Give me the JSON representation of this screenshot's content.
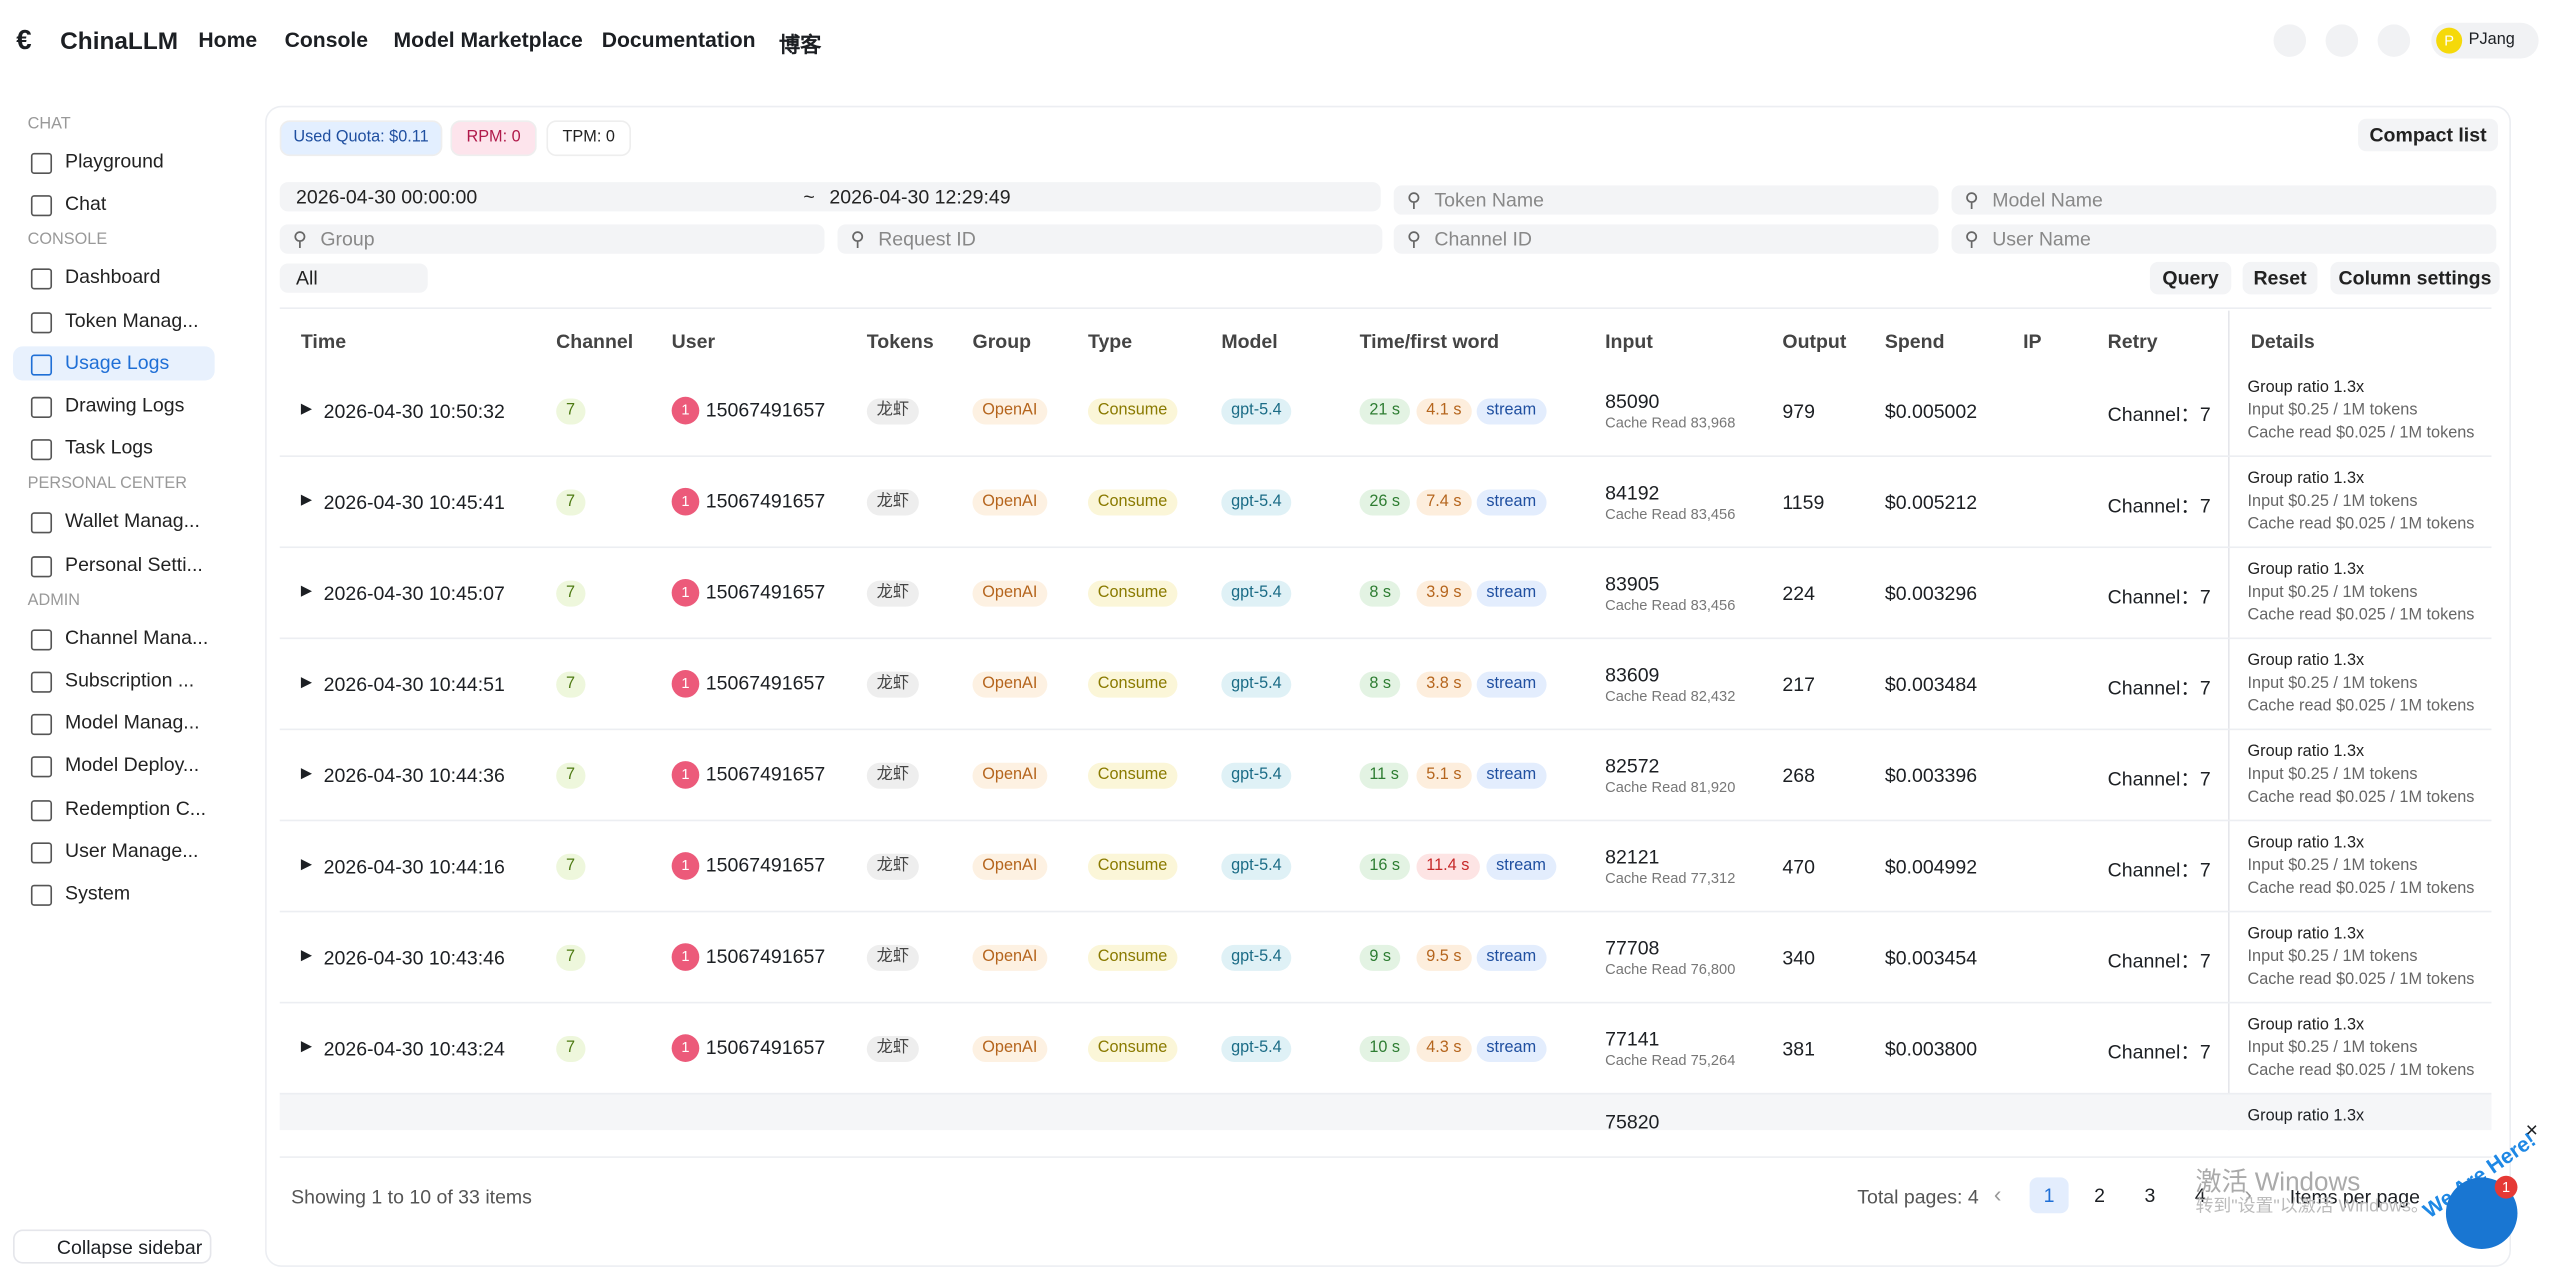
{
  "header": {
    "brand": "ChinaLLM",
    "nav": [
      "Home",
      "Console",
      "Model Marketplace",
      "Documentation",
      "博客"
    ],
    "avatar": "P",
    "user": "PJang"
  },
  "sidebar": {
    "sections": [
      {
        "title": "CHAT",
        "items": [
          "Playground",
          "Chat"
        ]
      },
      {
        "title": "CONSOLE",
        "items": [
          "Dashboard",
          "Token Manag...",
          "Usage Logs",
          "Drawing Logs",
          "Task Logs"
        ]
      },
      {
        "title": "PERSONAL CENTER",
        "items": [
          "Wallet Manag...",
          "Personal Setti..."
        ]
      },
      {
        "title": "ADMIN",
        "items": [
          "Channel Mana...",
          "Subscription ...",
          "Model Manag...",
          "Model Deploy...",
          "Redemption C...",
          "User Manage...",
          "System"
        ]
      }
    ],
    "active": "Usage Logs",
    "collapse": "Collapse sidebar"
  },
  "stats": [
    "Used Quota: $0.11",
    "RPM: 0",
    "TPM: 0"
  ],
  "compact": "Compact list",
  "filters": {
    "start": "2026-04-30 00:00:00",
    "sep": "~",
    "end": "2026-04-30 12:29:49",
    "placeholders": [
      "Token Name",
      "Model Name",
      "Group",
      "Request ID",
      "Channel ID",
      "User Name"
    ],
    "select": "All",
    "buttons": [
      "Query",
      "Reset",
      "Column settings"
    ]
  },
  "table": {
    "columns": [
      "Time",
      "Channel",
      "User",
      "Tokens",
      "Group",
      "Type",
      "Model",
      "Time/first word",
      "Input",
      "Output",
      "Spend",
      "IP",
      "Retry",
      "Details"
    ],
    "rows": [
      {
        "time": "2026-04-30 10:50:32",
        "channel": "7",
        "avatar": "1",
        "user": "15067491657",
        "token": "龙虾",
        "group": "OpenAI",
        "type": "Consume",
        "model": "gpt-5.4",
        "total": "21 s",
        "first": "4.1 s",
        "stream": "stream",
        "input": 85090,
        "cache": "Cache Read 83,968",
        "output": 979,
        "spend": "$0.005002",
        "retry": "Channel：7",
        "details": [
          "Group ratio 1.3x",
          "Input $0.25 / 1M tokens",
          "Cache read $0.025 / 1M tokens"
        ]
      },
      {
        "time": "2026-04-30 10:45:41",
        "channel": "7",
        "avatar": "1",
        "user": "15067491657",
        "token": "龙虾",
        "group": "OpenAI",
        "type": "Consume",
        "model": "gpt-5.4",
        "total": "26 s",
        "first": "7.4 s",
        "stream": "stream",
        "input": 84192,
        "cache": "Cache Read 83,456",
        "output": 1159,
        "spend": "$0.005212",
        "retry": "Channel：7",
        "details": [
          "Group ratio 1.3x",
          "Input $0.25 / 1M tokens",
          "Cache read $0.025 / 1M tokens"
        ]
      },
      {
        "time": "2026-04-30 10:45:07",
        "channel": "7",
        "avatar": "1",
        "user": "15067491657",
        "token": "龙虾",
        "group": "OpenAI",
        "type": "Consume",
        "model": "gpt-5.4",
        "total": "8 s",
        "first": "3.9 s",
        "stream": "stream",
        "input": 83905,
        "cache": "Cache Read 83,456",
        "output": 224,
        "spend": "$0.003296",
        "retry": "Channel：7",
        "details": [
          "Group ratio 1.3x",
          "Input $0.25 / 1M tokens",
          "Cache read $0.025 / 1M tokens"
        ]
      },
      {
        "time": "2026-04-30 10:44:51",
        "channel": "7",
        "avatar": "1",
        "user": "15067491657",
        "token": "龙虾",
        "group": "OpenAI",
        "type": "Consume",
        "model": "gpt-5.4",
        "total": "8 s",
        "first": "3.8 s",
        "stream": "stream",
        "input": 83609,
        "cache": "Cache Read 82,432",
        "output": 217,
        "spend": "$0.003484",
        "retry": "Channel：7",
        "details": [
          "Group ratio 1.3x",
          "Input $0.25 / 1M tokens",
          "Cache read $0.025 / 1M tokens"
        ]
      },
      {
        "time": "2026-04-30 10:44:36",
        "channel": "7",
        "avatar": "1",
        "user": "15067491657",
        "token": "龙虾",
        "group": "OpenAI",
        "type": "Consume",
        "model": "gpt-5.4",
        "total": "11 s",
        "first": "5.1 s",
        "stream": "stream",
        "input": 82572,
        "cache": "Cache Read 81,920",
        "output": 268,
        "spend": "$0.003396",
        "retry": "Channel：7",
        "details": [
          "Group ratio 1.3x",
          "Input $0.25 / 1M tokens",
          "Cache read $0.025 / 1M tokens"
        ]
      },
      {
        "time": "2026-04-30 10:44:16",
        "channel": "7",
        "avatar": "1",
        "user": "15067491657",
        "token": "龙虾",
        "group": "OpenAI",
        "type": "Consume",
        "model": "gpt-5.4",
        "total": "16 s",
        "first": "11.4 s",
        "stream": "stream",
        "input": 82121,
        "cache": "Cache Read 77,312",
        "output": 470,
        "spend": "$0.004992",
        "retry": "Channel：7",
        "details": [
          "Group ratio 1.3x",
          "Input $0.25 / 1M tokens",
          "Cache read $0.025 / 1M tokens"
        ]
      },
      {
        "time": "2026-04-30 10:43:46",
        "channel": "7",
        "avatar": "1",
        "user": "15067491657",
        "token": "龙虾",
        "group": "OpenAI",
        "type": "Consume",
        "model": "gpt-5.4",
        "total": "9 s",
        "first": "9.5 s",
        "stream": "stream",
        "input": 77708,
        "cache": "Cache Read 76,800",
        "output": 340,
        "spend": "$0.003454",
        "retry": "Channel：7",
        "details": [
          "Group ratio 1.3x",
          "Input $0.25 / 1M tokens",
          "Cache read $0.025 / 1M tokens"
        ]
      },
      {
        "time": "2026-04-30 10:43:24",
        "channel": "7",
        "avatar": "1",
        "user": "15067491657",
        "token": "龙虾",
        "group": "OpenAI",
        "type": "Consume",
        "model": "gpt-5.4",
        "total": "10 s",
        "first": "4.3 s",
        "stream": "stream",
        "input": 77141,
        "cache": "Cache Read 75,264",
        "output": 381,
        "spend": "$0.003800",
        "retry": "Channel：7",
        "details": [
          "Group ratio 1.3x",
          "Input $0.25 / 1M tokens",
          "Cache read $0.025 / 1M tokens"
        ]
      }
    ],
    "partial": {
      "input": 75820,
      "details": "Group ratio 1.3x"
    }
  },
  "footer": {
    "showing": "Showing 1 to 10 of 33 items",
    "total": "Total pages: 4",
    "pages": [
      "1",
      "2",
      "3",
      "4"
    ],
    "per_page": "Items per page"
  },
  "overlay": {
    "watermark": "激活 Windows",
    "watermark_sub": "转到\"设置\"以激活 Windows。",
    "widget": "We Are Here!",
    "badge": "1"
  }
}
